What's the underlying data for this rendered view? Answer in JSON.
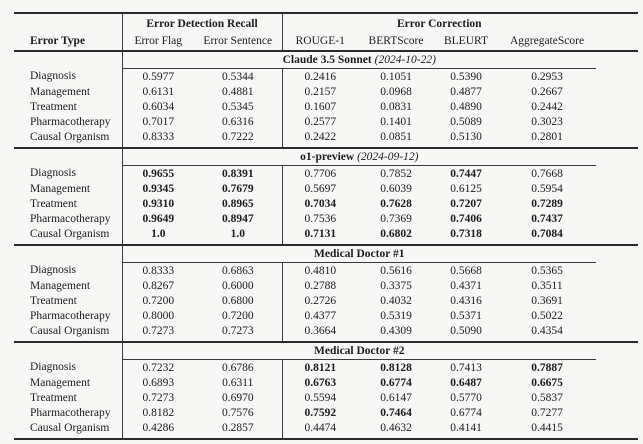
{
  "colors": {
    "background": "#f7f7f6",
    "text": "#1c1c1c",
    "rule_thick": "#2b2b2b",
    "rule_thin": "#3a3a3a"
  },
  "table": {
    "group_headers": {
      "detection": "Error Detection Recall",
      "correction": "Error Correction"
    },
    "columns": [
      "Error Type",
      "Error Flag",
      "Error Sentence",
      "ROUGE-1",
      "BERTScore",
      "BLEURT",
      "AggregateScore"
    ],
    "sections": [
      {
        "title": "Claude 3.5 Sonnet",
        "date": "(2024-10-22)",
        "rows": [
          {
            "label": "Diagnosis",
            "values": [
              "0.5977",
              "0.5344",
              "0.2416",
              "0.1051",
              "0.5390",
              "0.2953"
            ],
            "bold": [
              0,
              0,
              0,
              0,
              0,
              0
            ]
          },
          {
            "label": "Management",
            "values": [
              "0.6131",
              "0.4881",
              "0.2157",
              "0.0968",
              "0.4877",
              "0.2667"
            ],
            "bold": [
              0,
              0,
              0,
              0,
              0,
              0
            ]
          },
          {
            "label": "Treatment",
            "values": [
              "0.6034",
              "0.5345",
              "0.1607",
              "0.0831",
              "0.4890",
              "0.2442"
            ],
            "bold": [
              0,
              0,
              0,
              0,
              0,
              0
            ]
          },
          {
            "label": "Pharmacotherapy",
            "values": [
              "0.7017",
              "0.6316",
              "0.2577",
              "0.1401",
              "0.5089",
              "0.3023"
            ],
            "bold": [
              0,
              0,
              0,
              0,
              0,
              0
            ]
          },
          {
            "label": "Causal Organism",
            "values": [
              "0.8333",
              "0.7222",
              "0.2422",
              "0.0851",
              "0.5130",
              "0.2801"
            ],
            "bold": [
              0,
              0,
              0,
              0,
              0,
              0
            ]
          }
        ]
      },
      {
        "title": "o1-preview",
        "date": "(2024-09-12)",
        "rows": [
          {
            "label": "Diagnosis",
            "values": [
              "0.9655",
              "0.8391",
              "0.7706",
              "0.7852",
              "0.7447",
              "0.7668"
            ],
            "bold": [
              1,
              1,
              0,
              0,
              1,
              0
            ]
          },
          {
            "label": "Management",
            "values": [
              "0.9345",
              "0.7679",
              "0.5697",
              "0.6039",
              "0.6125",
              "0.5954"
            ],
            "bold": [
              1,
              1,
              0,
              0,
              0,
              0
            ]
          },
          {
            "label": "Treatment",
            "values": [
              "0.9310",
              "0.8965",
              "0.7034",
              "0.7628",
              "0.7207",
              "0.7289"
            ],
            "bold": [
              1,
              1,
              1,
              1,
              1,
              1
            ]
          },
          {
            "label": "Pharmacotherapy",
            "values": [
              "0.9649",
              "0.8947",
              "0.7536",
              "0.7369",
              "0.7406",
              "0.7437"
            ],
            "bold": [
              1,
              1,
              0,
              0,
              1,
              1
            ]
          },
          {
            "label": "Causal Organism",
            "values": [
              "1.0",
              "1.0",
              "0.7131",
              "0.6802",
              "0.7318",
              "0.7084"
            ],
            "bold": [
              1,
              1,
              1,
              1,
              1,
              1
            ]
          }
        ]
      },
      {
        "title": "Medical Doctor #1",
        "date": "",
        "rows": [
          {
            "label": "Diagnosis",
            "values": [
              "0.8333",
              "0.6863",
              "0.4810",
              "0.5616",
              "0.5668",
              "0.5365"
            ],
            "bold": [
              0,
              0,
              0,
              0,
              0,
              0
            ]
          },
          {
            "label": "Management",
            "values": [
              "0.8267",
              "0.6000",
              "0.2788",
              "0.3375",
              "0.4371",
              "0.3511"
            ],
            "bold": [
              0,
              0,
              0,
              0,
              0,
              0
            ]
          },
          {
            "label": "Treatment",
            "values": [
              "0.7200",
              "0.6800",
              "0.2726",
              "0.4032",
              "0.4316",
              "0.3691"
            ],
            "bold": [
              0,
              0,
              0,
              0,
              0,
              0
            ]
          },
          {
            "label": "Pharmacotherapy",
            "values": [
              "0.8000",
              "0.7200",
              "0.4377",
              "0.5319",
              "0.5371",
              "0.5022"
            ],
            "bold": [
              0,
              0,
              0,
              0,
              0,
              0
            ]
          },
          {
            "label": "Causal Organism",
            "values": [
              "0.7273",
              "0.7273",
              "0.3664",
              "0.4309",
              "0.5090",
              "0.4354"
            ],
            "bold": [
              0,
              0,
              0,
              0,
              0,
              0
            ]
          }
        ]
      },
      {
        "title": "Medical Doctor #2",
        "date": "",
        "rows": [
          {
            "label": "Diagnosis",
            "values": [
              "0.7232",
              "0.6786",
              "0.8121",
              "0.8128",
              "0.7413",
              "0.7887"
            ],
            "bold": [
              0,
              0,
              1,
              1,
              0,
              1
            ]
          },
          {
            "label": "Management",
            "values": [
              "0.6893",
              "0.6311",
              "0.6763",
              "0.6774",
              "0.6487",
              "0.6675"
            ],
            "bold": [
              0,
              0,
              1,
              1,
              1,
              1
            ]
          },
          {
            "label": "Treatment",
            "values": [
              "0.7273",
              "0.6970",
              "0.5594",
              "0.6147",
              "0.5770",
              "0.5837"
            ],
            "bold": [
              0,
              0,
              0,
              0,
              0,
              0
            ]
          },
          {
            "label": "Pharmacotherapy",
            "values": [
              "0.8182",
              "0.7576",
              "0.7592",
              "0.7464",
              "0.6774",
              "0.7277"
            ],
            "bold": [
              0,
              0,
              1,
              1,
              0,
              0
            ]
          },
          {
            "label": "Causal Organism",
            "values": [
              "0.4286",
              "0.2857",
              "0.4474",
              "0.4632",
              "0.4141",
              "0.4415"
            ],
            "bold": [
              0,
              0,
              0,
              0,
              0,
              0
            ]
          }
        ]
      }
    ]
  }
}
